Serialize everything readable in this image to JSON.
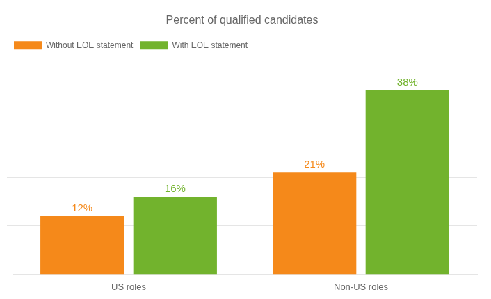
{
  "chart_data": {
    "type": "bar",
    "title": "Percent of qualified candidates",
    "categories": [
      "US roles",
      "Non-US roles"
    ],
    "series": [
      {
        "name": "Without EOE statement",
        "color": "#F5891A",
        "values": [
          12,
          21
        ],
        "value_labels": [
          "12%",
          "21%"
        ]
      },
      {
        "name": "With EOE statement",
        "color": "#72B32D",
        "values": [
          16,
          38
        ],
        "value_labels": [
          "16%",
          "38%"
        ]
      }
    ],
    "ylim": [
      0,
      45
    ],
    "yticks": [
      10,
      20,
      30,
      40
    ],
    "grid": true,
    "legend": "top-left",
    "data_labels": true,
    "tick_labels": "x"
  }
}
